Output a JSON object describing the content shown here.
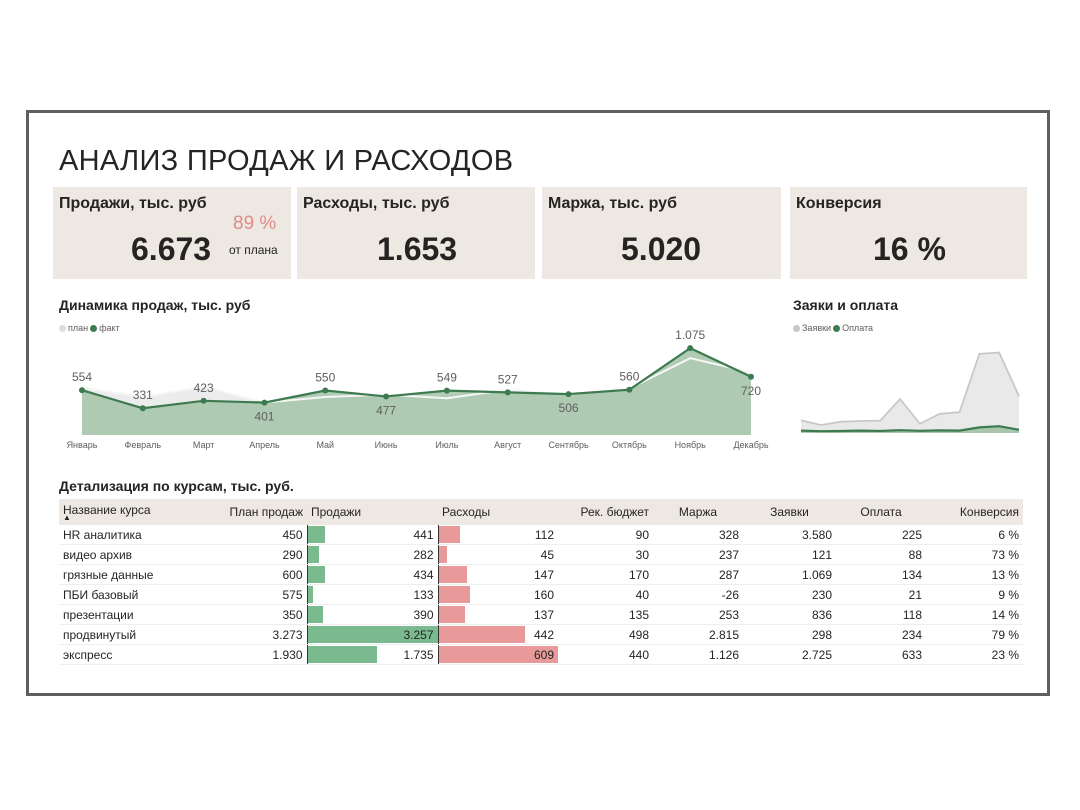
{
  "title": "АНАЛИЗ ПРОДАЖ И РАСХОДОВ",
  "colors": {
    "card_bg": "#ede8e2",
    "green": "#3d7a4f",
    "green_bar": "#7aba8e",
    "red_bar": "#e89a9a",
    "accent_pct": "#e28a8a",
    "plan": "#e6e6e6"
  },
  "cards": {
    "sales": {
      "label": "Продажи, тыс. руб",
      "value": "6.673",
      "pct": "89 %",
      "sub": "от плана"
    },
    "costs": {
      "label": "Расходы, тыс. руб",
      "value": "1.653"
    },
    "margin": {
      "label": "Маржа, тыс. руб",
      "value": "5.020"
    },
    "conversion": {
      "label": "Конверсия",
      "value": "16 %"
    }
  },
  "sales_chart": {
    "title": "Динамика продаж, тыс. руб",
    "legend": [
      "план",
      "факт"
    ]
  },
  "leads_chart": {
    "title": "Заяки и оплата",
    "legend": [
      "Заявки",
      "Оплата"
    ]
  },
  "chart_data": [
    {
      "type": "area",
      "title": "Динамика продаж, тыс. руб",
      "categories": [
        "Январь",
        "Февраль",
        "Март",
        "Апрель",
        "Май",
        "Июнь",
        "Июль",
        "Август",
        "Сентябрь",
        "Октябрь",
        "Ноябрь",
        "Декабрь"
      ],
      "series": [
        {
          "name": "план",
          "values": [
            590,
            470,
            600,
            400,
            470,
            500,
            455,
            560,
            500,
            575,
            950,
            775
          ]
        },
        {
          "name": "факт",
          "values": [
            554,
            331,
            423,
            401,
            550,
            477,
            549,
            527,
            506,
            560,
            1075,
            720
          ]
        }
      ],
      "data_labels": [
        "554",
        "331",
        "423",
        "401",
        "550",
        "477",
        "549",
        "527",
        "506",
        "560",
        "1.075",
        "720"
      ],
      "ylim": [
        0,
        1200
      ],
      "grid": false,
      "legend_position": "top-left"
    },
    {
      "type": "area",
      "title": "Заяки и оплата",
      "x_count": 12,
      "series": [
        {
          "name": "Заявки",
          "values": [
            320,
            200,
            280,
            300,
            310,
            850,
            230,
            480,
            520,
            1980,
            2010,
            920
          ]
        },
        {
          "name": "Оплата",
          "values": [
            60,
            45,
            50,
            60,
            52,
            70,
            55,
            65,
            60,
            140,
            170,
            80
          ]
        }
      ],
      "ylim": [
        0,
        2200
      ],
      "grid": false,
      "legend_position": "top-left"
    }
  ],
  "table": {
    "title": "Детализация по курсам, тыс. руб.",
    "headers": [
      "Название курса",
      "План продаж",
      "Продажи",
      "Расходы",
      "Рек. бюджет",
      "Маржа",
      "Заявки",
      "Оплата",
      "Конверсия"
    ],
    "sort_indicator": "▲",
    "rows": [
      {
        "name": "HR аналитика",
        "plan": "450",
        "sales": "441",
        "sales_v": 441,
        "costs": "112",
        "costs_v": 112,
        "budget": "90",
        "margin": "328",
        "leads": "3.580",
        "paid": "225",
        "conv": "6 %"
      },
      {
        "name": "видео архив",
        "plan": "290",
        "sales": "282",
        "sales_v": 282,
        "costs": "45",
        "costs_v": 45,
        "budget": "30",
        "margin": "237",
        "leads": "121",
        "paid": "88",
        "conv": "73 %"
      },
      {
        "name": "грязные данные",
        "plan": "600",
        "sales": "434",
        "sales_v": 434,
        "costs": "147",
        "costs_v": 147,
        "budget": "170",
        "margin": "287",
        "leads": "1.069",
        "paid": "134",
        "conv": "13 %"
      },
      {
        "name": "ПБИ базовый",
        "plan": "575",
        "sales": "133",
        "sales_v": 133,
        "costs": "160",
        "costs_v": 160,
        "budget": "40",
        "margin": "-26",
        "leads": "230",
        "paid": "21",
        "conv": "9 %"
      },
      {
        "name": "презентации",
        "plan": "350",
        "sales": "390",
        "sales_v": 390,
        "costs": "137",
        "costs_v": 137,
        "budget": "135",
        "margin": "253",
        "leads": "836",
        "paid": "118",
        "conv": "14 %"
      },
      {
        "name": "продвинутый",
        "plan": "3.273",
        "sales": "3.257",
        "sales_v": 3257,
        "costs": "442",
        "costs_v": 442,
        "budget": "498",
        "margin": "2.815",
        "leads": "298",
        "paid": "234",
        "conv": "79 %"
      },
      {
        "name": "экспресс",
        "plan": "1.930",
        "sales": "1.735",
        "sales_v": 1735,
        "costs": "609",
        "costs_v": 609,
        "budget": "440",
        "margin": "1.126",
        "leads": "2.725",
        "paid": "633",
        "conv": "23 %"
      }
    ]
  }
}
